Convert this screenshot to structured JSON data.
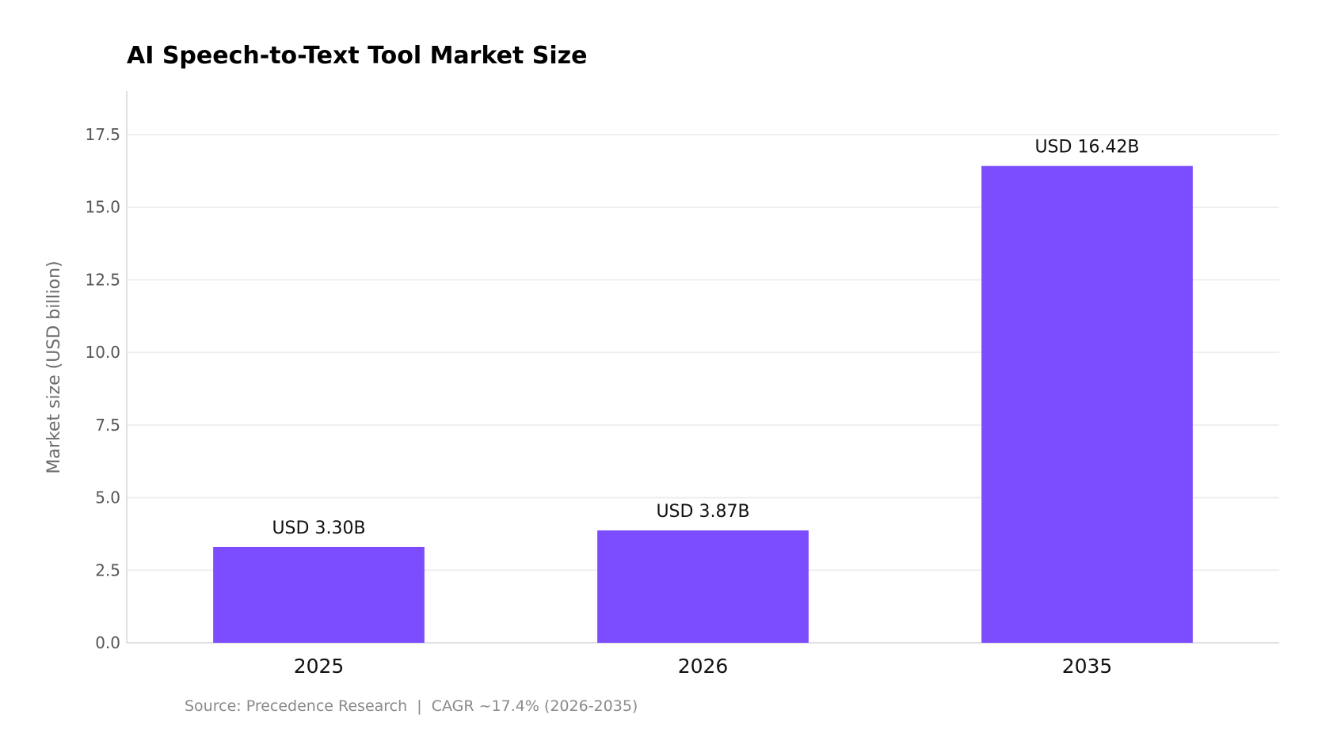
{
  "chart_data": {
    "type": "bar",
    "title": "AI Speech-to-Text Tool Market Size",
    "xlabel": "",
    "ylabel": "Market size (USD billion)",
    "categories": [
      "2025",
      "2026",
      "2035"
    ],
    "values": [
      3.3,
      3.87,
      16.42
    ],
    "data_labels": [
      "USD 3.30B",
      "USD 3.87B",
      "USD 16.42B"
    ],
    "ylim": [
      0,
      19
    ],
    "yticks": [
      0.0,
      2.5,
      5.0,
      7.5,
      10.0,
      12.5,
      15.0,
      17.5
    ],
    "ytick_labels": [
      "0.0",
      "2.5",
      "5.0",
      "7.5",
      "10.0",
      "12.5",
      "15.0",
      "17.5"
    ],
    "grid": true,
    "legend": "none",
    "bar_color": "#7c4dff",
    "source_note": "Source: Precedence Research  |  CAGR ~17.4% (2026-2035)"
  }
}
